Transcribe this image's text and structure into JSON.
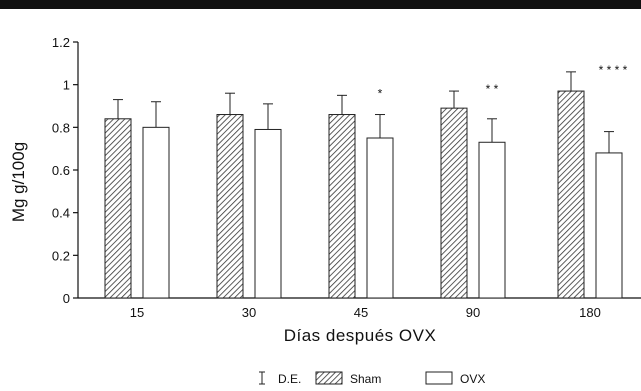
{
  "chart_data": {
    "type": "bar",
    "categories": [
      "15",
      "30",
      "45",
      "90",
      "180"
    ],
    "series": [
      {
        "name": "Sham",
        "values": [
          0.84,
          0.86,
          0.86,
          0.89,
          0.97
        ],
        "errors": [
          0.09,
          0.1,
          0.09,
          0.08,
          0.09
        ],
        "pattern": "diagonal-hatch"
      },
      {
        "name": "OVX",
        "values": [
          0.8,
          0.79,
          0.75,
          0.73,
          0.68
        ],
        "errors": [
          0.12,
          0.12,
          0.11,
          0.11,
          0.1
        ],
        "pattern": "none"
      }
    ],
    "significance": [
      "",
      "",
      "*",
      "* *",
      "* * * *"
    ],
    "xlabel": "Días después OVX",
    "ylabel": "Mg g/100g",
    "ylim": [
      0,
      1.2
    ],
    "yticks": [
      0,
      0.2,
      0.4,
      0.6,
      0.8,
      1,
      1.2
    ],
    "ytick_labels": [
      "0",
      "0.2",
      "0.4",
      "0.6",
      "0.8",
      "1",
      "1.2"
    ],
    "legend": {
      "placement": "bottom-center",
      "error_label": "D.E.",
      "items": [
        "Sham",
        "OVX"
      ]
    },
    "grid": false
  },
  "colors": {
    "frame": "#111111",
    "bar_edge": "#222222",
    "hatch": "#333333",
    "background": "#ffffff"
  }
}
